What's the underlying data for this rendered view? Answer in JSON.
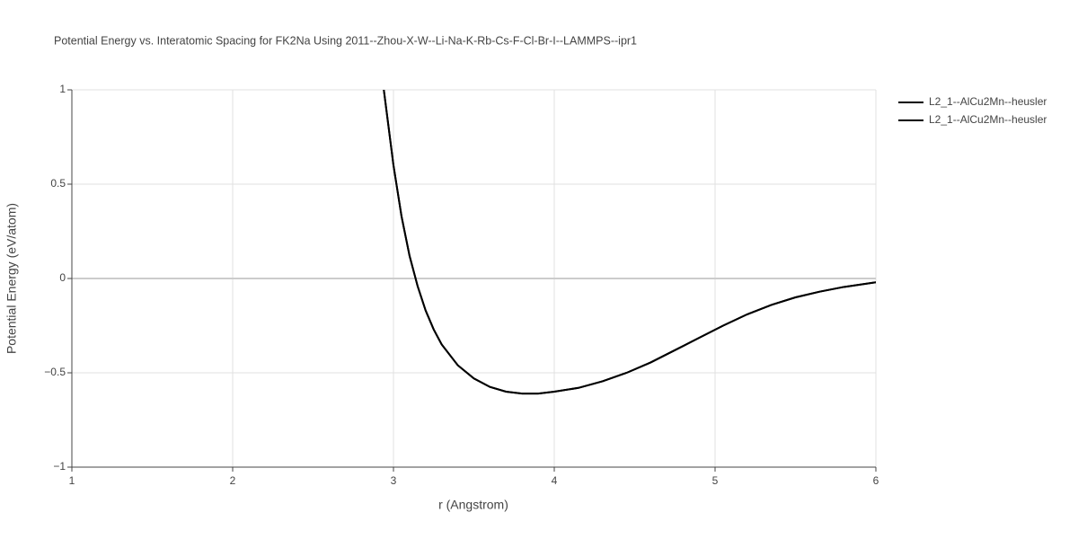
{
  "chart_data": {
    "type": "line",
    "title": "Potential Energy vs. Interatomic Spacing for FK2Na Using 2011--Zhou-X-W--Li-Na-K-Rb-Cs-F-Cl-Br-I--LAMMPS--ipr1",
    "xlabel": "r (Angstrom)",
    "ylabel": "Potential Energy (eV/atom)",
    "x": [
      2.94,
      3.0,
      3.05,
      3.1,
      3.15,
      3.2,
      3.25,
      3.3,
      3.4,
      3.5,
      3.6,
      3.7,
      3.8,
      3.9,
      4.0,
      4.15,
      4.3,
      4.45,
      4.6,
      4.75,
      4.9,
      5.05,
      5.2,
      5.35,
      5.5,
      5.65,
      5.8,
      6.0
    ],
    "series": [
      {
        "name": "L2_1--AlCu2Mn--heusler",
        "color": "#000000",
        "values": [
          1.0,
          0.6,
          0.33,
          0.12,
          -0.04,
          -0.17,
          -0.27,
          -0.35,
          -0.46,
          -0.53,
          -0.575,
          -0.6,
          -0.61,
          -0.61,
          -0.6,
          -0.58,
          -0.545,
          -0.5,
          -0.445,
          -0.38,
          -0.315,
          -0.25,
          -0.19,
          -0.14,
          -0.1,
          -0.07,
          -0.045,
          -0.02
        ]
      },
      {
        "name": "L2_1--AlCu2Mn--heusler",
        "color": "#000000",
        "values": [
          1.0,
          0.6,
          0.33,
          0.12,
          -0.04,
          -0.17,
          -0.27,
          -0.35,
          -0.46,
          -0.53,
          -0.575,
          -0.6,
          -0.61,
          -0.61,
          -0.6,
          -0.58,
          -0.545,
          -0.5,
          -0.445,
          -0.38,
          -0.315,
          -0.25,
          -0.19,
          -0.14,
          -0.1,
          -0.07,
          -0.045,
          -0.02
        ]
      }
    ],
    "xlim": [
      1,
      6
    ],
    "xticks": [
      1,
      2,
      3,
      4,
      5,
      6
    ],
    "ylim": [
      -1,
      1
    ],
    "yticks": [
      {
        "value": -1,
        "label": "−1"
      },
      {
        "value": -0.5,
        "label": "−0.5"
      },
      0,
      0.5,
      1
    ],
    "grid": true
  }
}
